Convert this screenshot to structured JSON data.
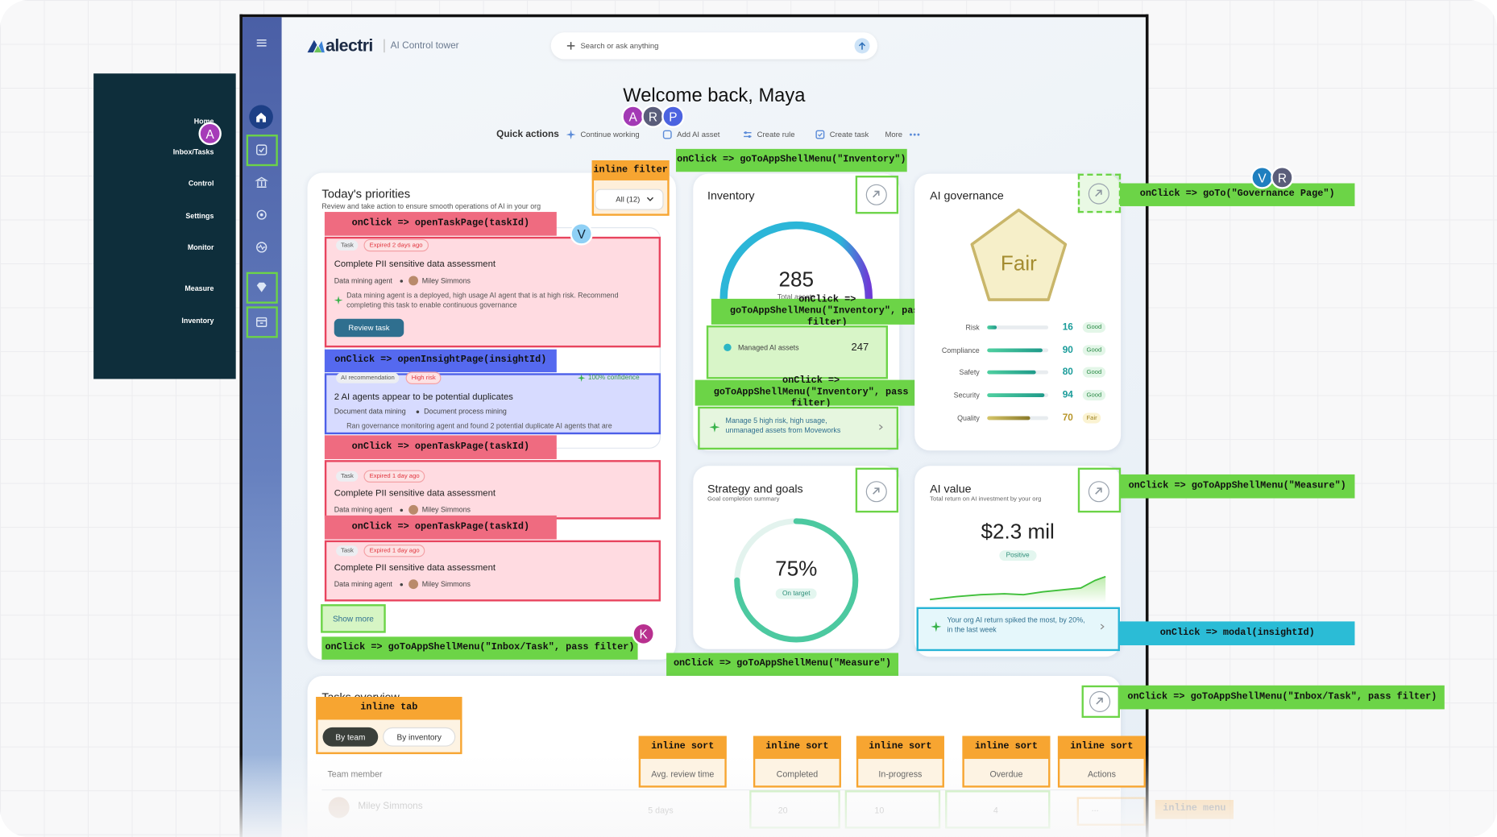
{
  "nav_panel": {
    "items": [
      "Home",
      "Inbox/Tasks",
      "Control",
      "Settings",
      "Monitor",
      "Measure",
      "Inventory"
    ]
  },
  "cursors": [
    "A",
    "A",
    "R",
    "P",
    "V",
    "R",
    "V",
    "K"
  ],
  "header": {
    "logo": "alectri",
    "product": "AI Control tower",
    "search_placeholder": "Search or ask anything"
  },
  "welcome": "Welcome back, Maya",
  "quick_actions": {
    "label": "Quick actions",
    "items": [
      "Continue working",
      "Add AI asset",
      "Create rule",
      "Create task",
      "More"
    ]
  },
  "priorities": {
    "title": "Today's priorities",
    "subtitle": "Review and take action to ensure smooth operations of AI in your org",
    "filter": "All (12)",
    "items": [
      {
        "tag": "Task",
        "status": "Expired 2 days ago",
        "title": "Complete PII sensitive data assessment",
        "agent": "Data mining agent",
        "owner": "Miley Simmons",
        "note": "Data mining agent is a deployed, high usage AI agent that is at high risk. Recommend completing this task to enable continuous governance",
        "action": "Review task"
      },
      {
        "tags": [
          "AI recommendation",
          "High risk"
        ],
        "confidence": "100% confidence",
        "title": "2 AI agents appear to be potential duplicates",
        "assets": [
          "Document data mining",
          "Document process mining"
        ],
        "note": "Ran governance monitoring agent and found 2 potential duplicate AI agents that are"
      },
      {
        "tag": "Task",
        "status": "Expired 1 day ago",
        "title": "Complete PII sensitive data assessment",
        "agent": "Data mining agent",
        "owner": "Miley Simmons"
      },
      {
        "tag": "Task",
        "status": "Expired 1 day ago",
        "title": "Complete PII sensitive data assessment",
        "agent": "Data mining agent",
        "owner": "Miley Simmons"
      }
    ],
    "show_more": "Show more"
  },
  "inventory": {
    "title": "Inventory",
    "total": 285,
    "total_label": "Total assets",
    "managed_label": "Managed AI assets",
    "managed": 247,
    "insight": "Manage 5 high risk, high usage, unmanaged assets from Moveworks"
  },
  "governance": {
    "title": "AI governance",
    "rating": "Fair",
    "metrics": [
      {
        "name": "Risk",
        "value": 16,
        "status": "Good"
      },
      {
        "name": "Compliance",
        "value": 90,
        "status": "Good"
      },
      {
        "name": "Safety",
        "value": 80,
        "status": "Good"
      },
      {
        "name": "Security",
        "value": 94,
        "status": "Good"
      },
      {
        "name": "Quality",
        "value": 70,
        "status": "Fair"
      }
    ]
  },
  "strategy": {
    "title": "Strategy and goals",
    "subtitle": "Goal completion summary",
    "completion": "75%",
    "status": "On target"
  },
  "ai_value": {
    "title": "AI value",
    "subtitle": "Total return on AI investment by your org",
    "amount": "$2.3 mil",
    "trend": "Positive",
    "insight": "Your org AI return spiked the most, by 20%, in the last week"
  },
  "tasks_overview": {
    "title": "Tasks overview",
    "tabs": [
      "By team",
      "By inventory"
    ],
    "columns": [
      "Team member",
      "Avg. review time",
      "Completed",
      "In-progress",
      "Overdue",
      "Actions"
    ],
    "rows": [
      [
        "Miley Simmons",
        "5 days",
        20,
        10,
        4,
        "..."
      ]
    ]
  },
  "annotations": [
    "inline filter",
    "onClick => goToAppShellMenu(\"Inventory\")",
    "onClick => goTo(\"Governance Page\")",
    "onClick => openTaskPage(taskId)",
    "onClick => goToAppShellMenu(\"Inventory\", pass filter)",
    "onClick => openInsightPage(insightId)",
    "onClick => goToAppShellMenu(\"Inventory\", pass filter)",
    "onClick => openTaskPage(taskId)",
    "onClick => openTaskPage(taskId)",
    "onClick => goToAppShellMenu(\"Inbox/Task\", pass filter)",
    "onClick => goToAppShellMenu(\"Measure\")",
    "onClick => modal(insightId)",
    "onClick => goToAppShellMenu(\"Measure\")",
    "onClick => goToAppShellMenu(\"Inbox/Task\", pass filter)",
    "inline tab",
    "inline sort",
    "inline sort",
    "inline sort",
    "inline sort",
    "inline sort",
    "inline menu"
  ]
}
